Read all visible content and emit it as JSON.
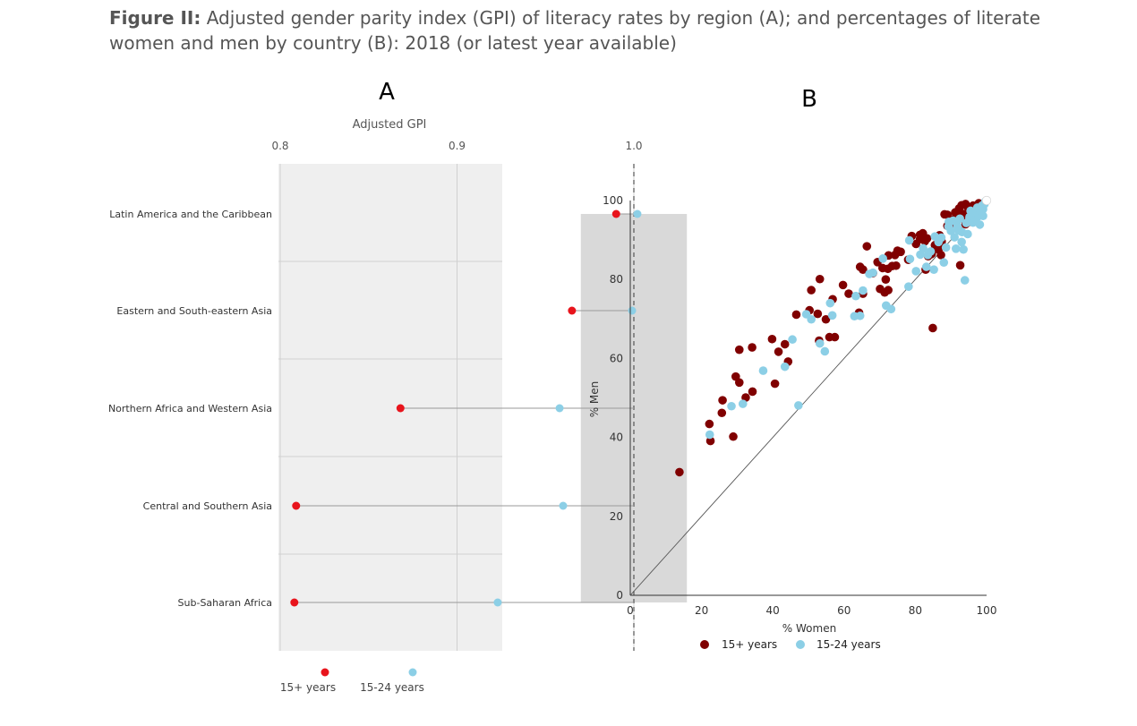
{
  "figure": {
    "label": "Figure II:",
    "caption": "Adjusted gender parity index (GPI) of literacy rates by region (A); and percentages of literate women and men by country (B): 2018 (or latest year available)"
  },
  "colors": {
    "red": "#e8141c",
    "blue": "#8ccfe6",
    "darkred": "#800000",
    "panel_bg": "#efefef",
    "band": "#d9d9d9"
  },
  "chart_data": [
    {
      "type": "dot-plot",
      "panel_label": "A",
      "title": "Adjusted GPI",
      "xlim": [
        0.8,
        1.03
      ],
      "xticks": [
        0.8,
        0.9,
        1.0
      ],
      "xtick_labels": [
        "0.8",
        "0.9",
        "1.0"
      ],
      "reference_line": 1.0,
      "parity_band": [
        0.97,
        1.03
      ],
      "categories": [
        "Latin America and the Caribbean",
        "Eastern and South-eastern Asia",
        "Northern Africa and Western Asia",
        "Central and Southern Asia",
        "Sub-Saharan Africa"
      ],
      "series": [
        {
          "name": "15+ years",
          "values": [
            0.99,
            0.965,
            0.868,
            0.809,
            0.808
          ]
        },
        {
          "name": "15-24 years",
          "values": [
            1.002,
            0.999,
            0.958,
            0.96,
            0.923
          ]
        }
      ],
      "legend": [
        "15+ years",
        "15-24 years"
      ]
    },
    {
      "type": "scatter",
      "panel_label": "B",
      "xlabel": "% Women",
      "ylabel": "% Men",
      "xlim": [
        0,
        100
      ],
      "ylim": [
        0,
        100
      ],
      "xticks": [
        "0",
        "20",
        "40",
        "60",
        "80",
        "100"
      ],
      "yticks": [
        "0",
        "20",
        "40",
        "60",
        "80",
        "100"
      ],
      "reference_line": "y = x",
      "legend": [
        "15+ years",
        "15-24 years"
      ],
      "series": [
        {
          "name": "15+ years",
          "points": [
            [
              13.8,
              31.2
            ],
            [
              22.5,
              39.1
            ],
            [
              22.2,
              43.4
            ],
            [
              25.7,
              46.2
            ],
            [
              25.9,
              49.4
            ],
            [
              28.9,
              40.2
            ],
            [
              29.6,
              55.4
            ],
            [
              30.6,
              53.9
            ],
            [
              32.4,
              50.1
            ],
            [
              34.3,
              51.6
            ],
            [
              30.6,
              62.2
            ],
            [
              34.2,
              62.8
            ],
            [
              39.8,
              64.9
            ],
            [
              40.6,
              53.6
            ],
            [
              41.6,
              61.7
            ],
            [
              43.4,
              63.6
            ],
            [
              44.3,
              59.2
            ],
            [
              46.6,
              71.1
            ],
            [
              50.3,
              72.2
            ],
            [
              50.8,
              77.3
            ],
            [
              52.6,
              71.3
            ],
            [
              53.2,
              80.1
            ],
            [
              53.0,
              64.5
            ],
            [
              54.9,
              69.9
            ],
            [
              55.9,
              65.4
            ],
            [
              57.4,
              65.4
            ],
            [
              56.8,
              75.0
            ],
            [
              59.7,
              78.6
            ],
            [
              61.3,
              76.4
            ],
            [
              64.2,
              71.6
            ],
            [
              64.5,
              83.2
            ],
            [
              65.3,
              82.5
            ],
            [
              65.3,
              76.4
            ],
            [
              66.4,
              88.4
            ],
            [
              68.1,
              81.6
            ],
            [
              69.4,
              84.4
            ],
            [
              70.1,
              77.6
            ],
            [
              70.8,
              82.9
            ],
            [
              71.4,
              76.7
            ],
            [
              71.7,
              80.0
            ],
            [
              72.4,
              77.3
            ],
            [
              72.3,
              82.7
            ],
            [
              72.5,
              86.1
            ],
            [
              73.5,
              83.4
            ],
            [
              74.3,
              86.2
            ],
            [
              74.6,
              83.5
            ],
            [
              75.0,
              87.3
            ],
            [
              75.9,
              87.0
            ],
            [
              78.0,
              85.0
            ],
            [
              79.0,
              91.0
            ],
            [
              80.2,
              89.0
            ],
            [
              81.3,
              90.2
            ],
            [
              81.3,
              91.3
            ],
            [
              82.1,
              91.7
            ],
            [
              82.7,
              89.7
            ],
            [
              83.3,
              90.4
            ],
            [
              82.9,
              82.5
            ],
            [
              83.6,
              85.9
            ],
            [
              84.4,
              86.4
            ],
            [
              84.9,
              67.7
            ],
            [
              84.6,
              86.5
            ],
            [
              85.5,
              88.7
            ],
            [
              86.5,
              87.6
            ],
            [
              86.8,
              88.5
            ],
            [
              86.8,
              91.2
            ],
            [
              87.2,
              86.2
            ],
            [
              87.4,
              89.6
            ],
            [
              88.2,
              96.5
            ],
            [
              89.0,
              96.4
            ],
            [
              89.0,
              93.6
            ],
            [
              89.7,
              94.0
            ],
            [
              90.7,
              95.2
            ],
            [
              91.2,
              97.0
            ],
            [
              91.5,
              94.1
            ],
            [
              91.9,
              96.6
            ],
            [
              92.3,
              98.0
            ],
            [
              92.8,
              95.5
            ],
            [
              93.0,
              98.8
            ],
            [
              92.6,
              83.6
            ],
            [
              93.7,
              96.6
            ],
            [
              94.1,
              99.1
            ],
            [
              94.1,
              94.0
            ],
            [
              94.6,
              98.5
            ],
            [
              94.9,
              94.6
            ],
            [
              95.4,
              97.2
            ],
            [
              95.8,
              95.5
            ],
            [
              96.2,
              98.7
            ],
            [
              96.7,
              97.6
            ],
            [
              97.4,
              98.6
            ],
            [
              97.8,
              99.3
            ],
            [
              98.3,
              99.0
            ]
          ]
        },
        {
          "name": "15-24 years",
          "points": [
            [
              22.3,
              40.7
            ],
            [
              28.4,
              47.9
            ],
            [
              31.6,
              48.5
            ],
            [
              37.3,
              56.9
            ],
            [
              43.4,
              57.9
            ],
            [
              45.5,
              64.8
            ],
            [
              47.2,
              48.1
            ],
            [
              49.4,
              71.2
            ],
            [
              50.8,
              69.9
            ],
            [
              53.2,
              63.8
            ],
            [
              54.6,
              61.8
            ],
            [
              56.1,
              74.0
            ],
            [
              56.7,
              70.9
            ],
            [
              62.9,
              70.7
            ],
            [
              63.3,
              75.8
            ],
            [
              64.5,
              70.8
            ],
            [
              65.3,
              77.2
            ],
            [
              67.1,
              81.4
            ],
            [
              68.1,
              81.7
            ],
            [
              70.9,
              85.3
            ],
            [
              71.8,
              73.4
            ],
            [
              73.2,
              72.5
            ],
            [
              78.1,
              78.2
            ],
            [
              78.3,
              89.9
            ],
            [
              78.5,
              85.2
            ],
            [
              80.2,
              82.1
            ],
            [
              81.4,
              86.3
            ],
            [
              82.2,
              87.9
            ],
            [
              83.1,
              83.2
            ],
            [
              83.5,
              86.2
            ],
            [
              84.3,
              87.1
            ],
            [
              85.2,
              82.5
            ],
            [
              85.5,
              90.9
            ],
            [
              86.5,
              89.5
            ],
            [
              87.3,
              90.6
            ],
            [
              88.0,
              84.3
            ],
            [
              88.6,
              88.1
            ],
            [
              89.4,
              94.6
            ],
            [
              89.3,
              93.4
            ],
            [
              90.0,
              92.3
            ],
            [
              90.6,
              94.9
            ],
            [
              91.0,
              90.7
            ],
            [
              91.4,
              87.8
            ],
            [
              91.8,
              93.6
            ],
            [
              92.2,
              92.4
            ],
            [
              92.5,
              95.4
            ],
            [
              93.1,
              92.0
            ],
            [
              93.5,
              87.6
            ],
            [
              93.0,
              89.5
            ],
            [
              93.9,
              79.8
            ],
            [
              94.3,
              94.3
            ],
            [
              94.7,
              91.5
            ],
            [
              95.2,
              95.8
            ],
            [
              95.5,
              97.4
            ],
            [
              95.8,
              96.1
            ],
            [
              96.2,
              94.4
            ],
            [
              96.6,
              97.0
            ],
            [
              97.0,
              95.3
            ],
            [
              97.4,
              98.2
            ],
            [
              97.7,
              96.0
            ],
            [
              98.1,
              93.9
            ],
            [
              98.4,
              97.4
            ],
            [
              98.7,
              98.7
            ],
            [
              99.0,
              97.8
            ],
            [
              99.0,
              96.1
            ],
            [
              99.4,
              99.1
            ],
            [
              99.6,
              99.7
            ]
          ]
        }
      ]
    }
  ]
}
